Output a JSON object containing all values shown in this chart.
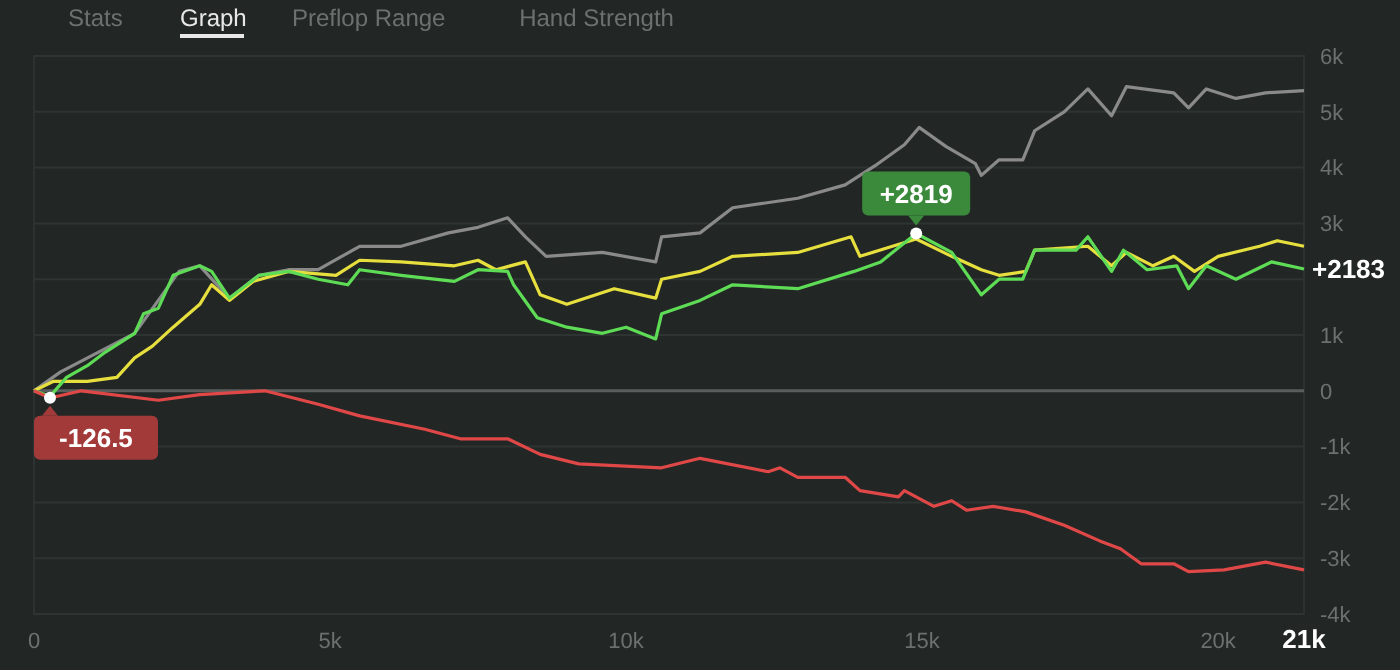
{
  "chart_data": {
    "type": "line",
    "annotations": [
      "Stats",
      "Graph",
      "Preflop Range",
      "Hand Strength",
      {
        "text": "-126.5",
        "x": 270,
        "y": -126.5
      },
      {
        "text": "+2819",
        "x": 14900,
        "y": 2819
      },
      {
        "text": "+2183",
        "x": 21450,
        "y": 2183
      }
    ],
    "xlim": [
      0,
      21450
    ],
    "xticks": [
      0,
      {
        "value": 5000,
        "label": "5k"
      },
      {
        "value": 10000,
        "label": "10k"
      },
      {
        "value": 15000,
        "label": "15k"
      },
      {
        "value": 20000,
        "label": "20k"
      },
      {
        "value": 21450,
        "label": "21k"
      }
    ],
    "ylim": [
      -4000,
      6000
    ],
    "yticks": [
      {
        "value": -4000,
        "label": "-4k"
      },
      {
        "value": -3000,
        "label": "-3k"
      },
      {
        "value": -2000,
        "label": "-2k"
      },
      {
        "value": -1000,
        "label": "-1k"
      },
      0,
      {
        "value": 1000,
        "label": "1k"
      },
      {
        "value": 2000,
        "label": null
      },
      {
        "value": 3000,
        "label": "3k"
      },
      {
        "value": 4000,
        "label": "4k"
      },
      {
        "value": 5000,
        "label": "5k"
      },
      {
        "value": 6000,
        "label": "6k"
      }
    ],
    "grid": "y",
    "line_style": "solid",
    "marker": "none",
    "series": [
      {
        "color": "#8a8a8a",
        "x": [
          0,
          450,
          1700,
          2100,
          2450,
          2800,
          3300,
          3800,
          4300,
          4800,
          5500,
          6200,
          7000,
          7500,
          8000,
          8300,
          8650,
          9600,
          10500,
          10600,
          11250,
          11800,
          12900,
          13700,
          14200,
          14700,
          14950,
          15400,
          15900,
          16000,
          16300,
          16700,
          16900,
          17400,
          17800,
          18200,
          18450,
          19250,
          19500,
          19800,
          20300,
          20800,
          21450
        ],
        "values": [
          0,
          340,
          1030,
          1620,
          2140,
          2240,
          1660,
          2070,
          2170,
          2170,
          2590,
          2590,
          2830,
          2930,
          3100,
          2760,
          2410,
          2480,
          2310,
          2760,
          2830,
          3280,
          3450,
          3690,
          4030,
          4410,
          4720,
          4380,
          4070,
          3860,
          4140,
          4140,
          4660,
          5000,
          5410,
          4930,
          5450,
          5340,
          5070,
          5410,
          5240,
          5340,
          5380
        ]
      },
      {
        "color": "#e6df3e",
        "x": [
          0,
          330,
          900,
          1400,
          1700,
          2000,
          2350,
          2800,
          3000,
          3300,
          3700,
          4300,
          5100,
          5500,
          6200,
          7100,
          7500,
          7800,
          8300,
          8550,
          9000,
          9800,
          10500,
          10600,
          11250,
          11800,
          12900,
          13800,
          13950,
          14500,
          14900,
          15500,
          16000,
          16300,
          16750,
          16900,
          17800,
          18200,
          18450,
          18900,
          19250,
          19600,
          20000,
          20700,
          21000,
          21450
        ],
        "values": [
          0,
          170,
          170,
          240,
          590,
          800,
          1140,
          1550,
          1900,
          1620,
          1960,
          2140,
          2070,
          2340,
          2310,
          2240,
          2340,
          2170,
          2310,
          1720,
          1550,
          1830,
          1660,
          2000,
          2140,
          2410,
          2480,
          2760,
          2410,
          2590,
          2720,
          2410,
          2170,
          2070,
          2140,
          2520,
          2590,
          2240,
          2480,
          2240,
          2410,
          2140,
          2410,
          2590,
          2690,
          2590
        ]
      },
      {
        "color": "#5fdc55",
        "x": [
          0,
          270,
          550,
          900,
          1200,
          1700,
          1850,
          2100,
          2350,
          2800,
          3000,
          3300,
          3800,
          4300,
          4800,
          5300,
          5500,
          6200,
          7100,
          7500,
          8000,
          8100,
          8500,
          9000,
          9600,
          10000,
          10500,
          10600,
          11250,
          11800,
          12900,
          13850,
          14300,
          14900,
          15500,
          16000,
          16300,
          16700,
          16900,
          17600,
          17800,
          18200,
          18400,
          18800,
          19300,
          19500,
          19800,
          20300,
          20900,
          21450
        ],
        "values": [
          0,
          -100,
          240,
          450,
          690,
          1030,
          1380,
          1480,
          2070,
          2240,
          2140,
          1660,
          2070,
          2140,
          2000,
          1900,
          2170,
          2070,
          1960,
          2170,
          2140,
          1900,
          1310,
          1140,
          1030,
          1140,
          930,
          1380,
          1620,
          1900,
          1830,
          2140,
          2310,
          2819,
          2480,
          1720,
          2000,
          2000,
          2520,
          2520,
          2760,
          2140,
          2520,
          2170,
          2240,
          1830,
          2240,
          2000,
          2310,
          2183
        ]
      },
      {
        "color": "#e04848",
        "x": [
          0,
          270,
          800,
          2100,
          2800,
          3900,
          4800,
          5500,
          6600,
          7200,
          8000,
          8550,
          9200,
          10600,
          11250,
          12400,
          12600,
          12900,
          13700,
          13950,
          14600,
          14700,
          15200,
          15500,
          15750,
          16200,
          16750,
          17400,
          18000,
          18350,
          18700,
          19250,
          19500,
          20100,
          20800,
          21450
        ],
        "values": [
          0,
          -130,
          0,
          -170,
          -70,
          0,
          -240,
          -450,
          -690,
          -860,
          -860,
          -1140,
          -1310,
          -1380,
          -1210,
          -1450,
          -1380,
          -1550,
          -1550,
          -1790,
          -1900,
          -1790,
          -2070,
          -1970,
          -2140,
          -2070,
          -2170,
          -2410,
          -2690,
          -2830,
          -3100,
          -3100,
          -3240,
          -3210,
          -3070,
          -3210
        ]
      }
    ]
  }
}
